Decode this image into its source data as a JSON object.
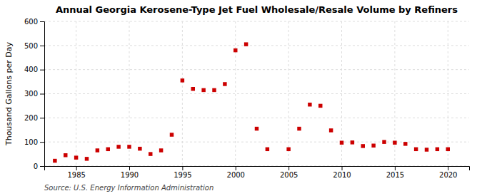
{
  "chart_data": {
    "type": "scatter",
    "title": "Annual Georgia Kerosene-Type Jet Fuel Wholesale/Resale Volume by Refiners",
    "y_label": "Thousand Gallons per Day",
    "source": "Source: U.S. Energy Information Administration",
    "x": [
      1983,
      1984,
      1985,
      1986,
      1987,
      1988,
      1989,
      1990,
      1991,
      1992,
      1993,
      1994,
      1995,
      1996,
      1997,
      1998,
      1999,
      2000,
      2001,
      2002,
      2003,
      2005,
      2006,
      2007,
      2008,
      2009,
      2010,
      2011,
      2012,
      2013,
      2014,
      2015,
      2016,
      2017,
      2018,
      2019,
      2020
    ],
    "values": [
      22,
      45,
      35,
      30,
      65,
      70,
      80,
      80,
      72,
      50,
      65,
      130,
      355,
      320,
      315,
      315,
      340,
      480,
      505,
      155,
      70,
      70,
      155,
      255,
      250,
      148,
      97,
      98,
      83,
      85,
      100,
      97,
      92,
      70,
      68,
      70,
      70
    ],
    "color": "#cc0000",
    "marker": "square",
    "xlim": [
      1982,
      2022
    ],
    "xticks": [
      1985,
      1990,
      1995,
      2000,
      2005,
      2010,
      2015,
      2020
    ],
    "ylim": [
      0,
      600
    ],
    "yticks": [
      0,
      100,
      200,
      300,
      400,
      500,
      600
    ],
    "grid": true
  }
}
